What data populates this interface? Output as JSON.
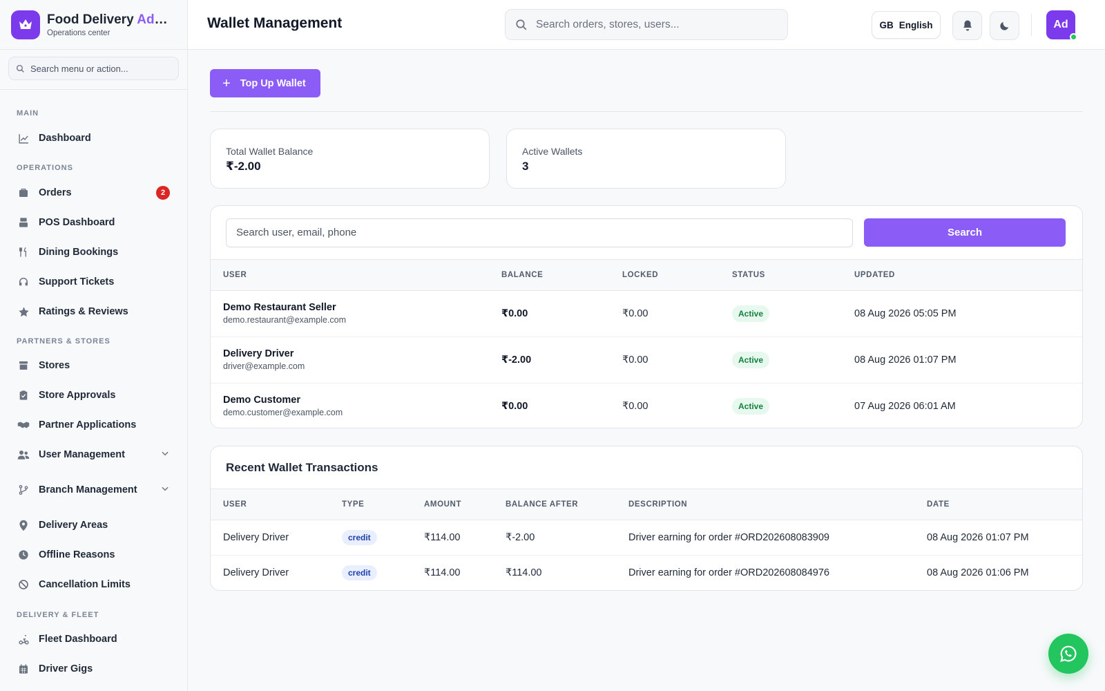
{
  "brand": {
    "title_main": "Food Delivery",
    "title_accent": "Admin",
    "subtitle": "Operations center"
  },
  "sidebar": {
    "search_placeholder": "Search menu or action...",
    "sections": {
      "main": "MAIN",
      "operations": "OPERATIONS",
      "partners": "PARTNERS & STORES",
      "delivery": "DELIVERY & FLEET"
    },
    "items": {
      "dashboard": "Dashboard",
      "orders": "Orders",
      "orders_badge": "2",
      "pos": "POS Dashboard",
      "dining": "Dining Bookings",
      "support": "Support Tickets",
      "ratings": "Ratings & Reviews",
      "stores": "Stores",
      "approvals": "Store Approvals",
      "partner_apps": "Partner Applications",
      "user_mgmt": "User Management",
      "branch_mgmt": "Branch Management",
      "delivery_areas": "Delivery Areas",
      "offline_reasons": "Offline Reasons",
      "cancel_limits": "Cancellation Limits",
      "fleet": "Fleet Dashboard",
      "driver_gigs": "Driver Gigs"
    }
  },
  "header": {
    "title": "Wallet Management",
    "search_placeholder": "Search orders, stores, users...",
    "lang_flag": "GB",
    "lang_label": "English",
    "avatar": "Ad"
  },
  "actions": {
    "topup": "Top Up Wallet"
  },
  "stats": {
    "total_label": "Total Wallet Balance",
    "total_value": "₹-2.00",
    "active_label": "Active Wallets",
    "active_value": "3"
  },
  "wallets": {
    "search_placeholder": "Search user, email, phone",
    "search_button": "Search",
    "columns": [
      "USER",
      "BALANCE",
      "LOCKED",
      "STATUS",
      "UPDATED"
    ],
    "rows": [
      {
        "name": "Demo Restaurant Seller",
        "email": "demo.restaurant@example.com",
        "balance": "₹0.00",
        "locked": "₹0.00",
        "status": "Active",
        "updated": "08 Aug 2026 05:05 PM"
      },
      {
        "name": "Delivery Driver",
        "email": "driver@example.com",
        "balance": "₹-2.00",
        "locked": "₹0.00",
        "status": "Active",
        "updated": "08 Aug 2026 01:07 PM"
      },
      {
        "name": "Demo Customer",
        "email": "demo.customer@example.com",
        "balance": "₹0.00",
        "locked": "₹0.00",
        "status": "Active",
        "updated": "07 Aug 2026 06:01 AM"
      }
    ]
  },
  "transactions": {
    "title": "Recent Wallet Transactions",
    "columns": [
      "USER",
      "TYPE",
      "AMOUNT",
      "BALANCE AFTER",
      "DESCRIPTION",
      "DATE"
    ],
    "rows": [
      {
        "user": "Delivery Driver",
        "type": "credit",
        "amount": "₹114.00",
        "balance_after": "₹-2.00",
        "description": "Driver earning for order #ORD202608083909",
        "date": "08 Aug 2026 01:07 PM"
      },
      {
        "user": "Delivery Driver",
        "type": "credit",
        "amount": "₹114.00",
        "balance_after": "₹114.00",
        "description": "Driver earning for order #ORD202608084976",
        "date": "08 Aug 2026 01:06 PM"
      }
    ]
  },
  "colors": {
    "accent": "#8b5cf6",
    "brand": "#7c3aed",
    "success": "#22c55e",
    "danger": "#dc2626"
  },
  "icons": [
    "crown-icon",
    "search-icon",
    "chart-icon",
    "orders-icon",
    "pos-icon",
    "dining-icon",
    "support-icon",
    "star-icon",
    "store-icon",
    "clipboard-icon",
    "handshake-icon",
    "users-icon",
    "branch-icon",
    "pin-icon",
    "clock-icon",
    "ban-icon",
    "fleet-icon",
    "calendar-icon",
    "bell-icon",
    "moon-icon",
    "plus-icon",
    "whatsapp-icon"
  ]
}
